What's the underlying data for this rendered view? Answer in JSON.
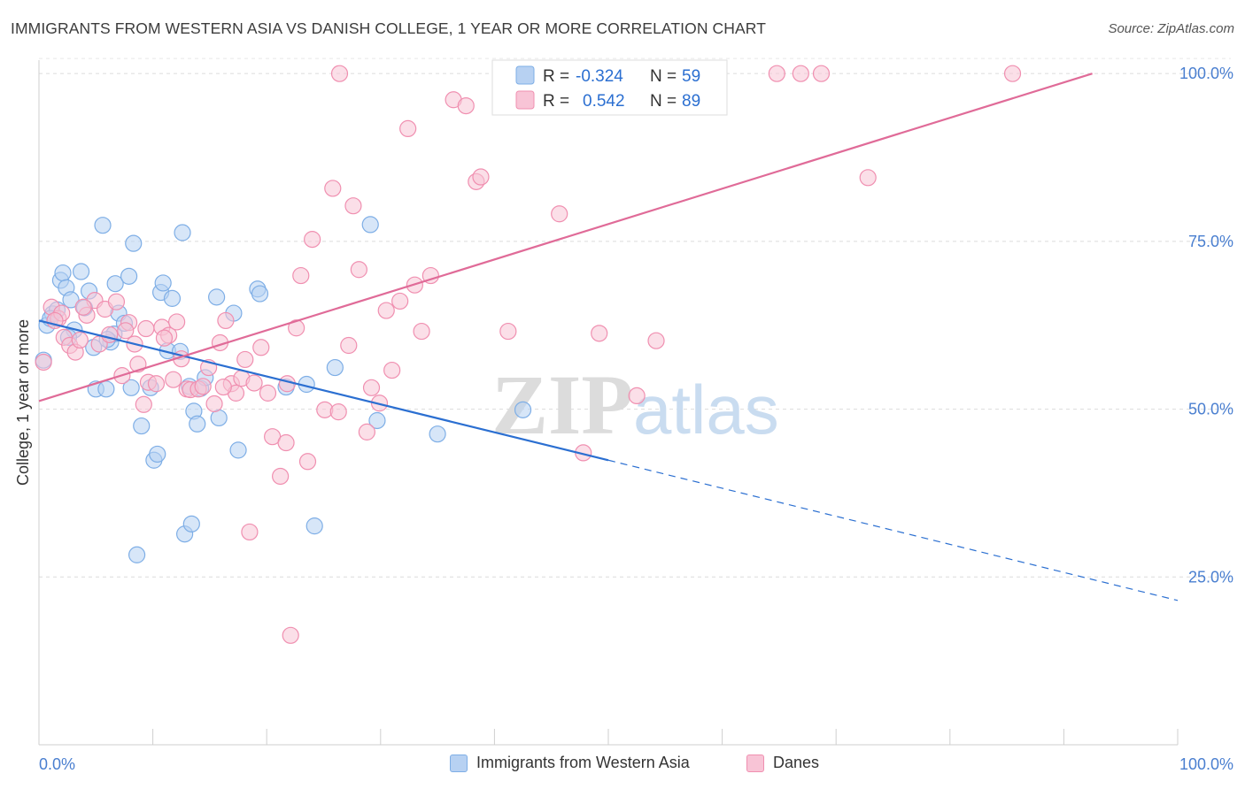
{
  "header": {
    "title": "IMMIGRANTS FROM WESTERN ASIA VS DANISH COLLEGE, 1 YEAR OR MORE CORRELATION CHART",
    "source": "Source: ZipAtlas.com"
  },
  "watermark": {
    "zip": "ZIP",
    "atlas": "atlas"
  },
  "legend_top": [
    {
      "r_label": "R =",
      "r_value": "-0.324",
      "n_label": "N =",
      "n_value": "59"
    },
    {
      "r_label": "R =",
      "r_value": "0.542",
      "n_label": "N =",
      "n_value": "89"
    }
  ],
  "legend_bottom": [
    {
      "label": "Immigrants from Western Asia"
    },
    {
      "label": "Danes"
    }
  ],
  "chart_data": {
    "type": "scatter",
    "title": "IMMIGRANTS FROM WESTERN ASIA VS DANISH COLLEGE, 1 YEAR OR MORE CORRELATION CHART",
    "xlabel": "",
    "ylabel": "College, 1 year or more",
    "xlim": [
      0,
      100
    ],
    "ylim": [
      0,
      102
    ],
    "x_tick_labels": [
      "0.0%",
      "100.0%"
    ],
    "y_ticks": [
      25,
      50,
      75,
      100
    ],
    "y_tick_labels": [
      "25.0%",
      "50.0%",
      "75.0%",
      "100.0%"
    ],
    "grid": true,
    "series": [
      {
        "name": "Immigrants from Western Asia",
        "color": "#7eaee6",
        "fill": "#b7d1f2",
        "trend_color": "#2b6fd1",
        "trend": {
          "x0": 0,
          "y0": 63.2,
          "x1": 50,
          "y1": 42.4,
          "dash_to_x": 100,
          "dash_to_y": 21.5
        },
        "points": [
          [
            0.7,
            62.5
          ],
          [
            1.2,
            64.2
          ],
          [
            1.6,
            64.8
          ],
          [
            1.9,
            69.2
          ],
          [
            2.1,
            70.3
          ],
          [
            2.4,
            68.1
          ],
          [
            2.8,
            66.3
          ],
          [
            3.1,
            61.8
          ],
          [
            3.7,
            70.5
          ],
          [
            4.0,
            65.1
          ],
          [
            4.4,
            67.6
          ],
          [
            4.8,
            59.2
          ],
          [
            5.0,
            53.0
          ],
          [
            5.6,
            77.4
          ],
          [
            5.9,
            53.0
          ],
          [
            6.3,
            60.0
          ],
          [
            6.6,
            61.2
          ],
          [
            6.7,
            68.7
          ],
          [
            7.0,
            64.3
          ],
          [
            7.5,
            62.8
          ],
          [
            7.9,
            69.8
          ],
          [
            8.1,
            53.2
          ],
          [
            8.3,
            74.7
          ],
          [
            8.6,
            28.3
          ],
          [
            9.0,
            47.5
          ],
          [
            9.8,
            53.2
          ],
          [
            10.1,
            42.4
          ],
          [
            10.4,
            43.3
          ],
          [
            10.7,
            67.4
          ],
          [
            10.9,
            68.8
          ],
          [
            11.3,
            58.7
          ],
          [
            11.7,
            66.5
          ],
          [
            12.4,
            58.6
          ],
          [
            12.6,
            76.3
          ],
          [
            12.8,
            31.4
          ],
          [
            13.2,
            53.4
          ],
          [
            13.4,
            32.9
          ],
          [
            13.6,
            49.7
          ],
          [
            13.9,
            47.8
          ],
          [
            14.2,
            53.1
          ],
          [
            14.6,
            54.7
          ],
          [
            15.8,
            48.7
          ],
          [
            15.6,
            66.7
          ],
          [
            17.1,
            64.3
          ],
          [
            17.5,
            43.9
          ],
          [
            19.2,
            67.9
          ],
          [
            19.4,
            67.2
          ],
          [
            21.7,
            53.3
          ],
          [
            23.5,
            53.7
          ],
          [
            24.2,
            32.6
          ],
          [
            26.0,
            56.2
          ],
          [
            29.1,
            77.5
          ],
          [
            29.7,
            48.3
          ],
          [
            35.0,
            46.3
          ],
          [
            42.5,
            49.9
          ],
          [
            0.4,
            57.3
          ],
          [
            1.0,
            63.5
          ],
          [
            2.6,
            60.7
          ],
          [
            6.0,
            60.4
          ]
        ]
      },
      {
        "name": "Danes",
        "color": "#f08fb0",
        "fill": "#f8c4d6",
        "trend_color": "#e06b98",
        "trend": {
          "x0": 0,
          "y0": 51.2,
          "x1": 92.5,
          "y1": 100.0
        },
        "points": [
          [
            0.4,
            57.0
          ],
          [
            1.1,
            65.2
          ],
          [
            1.7,
            63.5
          ],
          [
            2.2,
            60.7
          ],
          [
            2.7,
            59.5
          ],
          [
            3.2,
            58.5
          ],
          [
            3.6,
            60.3
          ],
          [
            4.2,
            64.0
          ],
          [
            4.9,
            66.2
          ],
          [
            5.3,
            59.7
          ],
          [
            5.8,
            64.9
          ],
          [
            6.2,
            61.1
          ],
          [
            6.8,
            66.0
          ],
          [
            7.3,
            55.0
          ],
          [
            7.9,
            62.9
          ],
          [
            8.4,
            59.7
          ],
          [
            8.7,
            56.7
          ],
          [
            9.2,
            50.7
          ],
          [
            9.6,
            54.0
          ],
          [
            10.3,
            53.8
          ],
          [
            10.8,
            62.2
          ],
          [
            11.4,
            61.0
          ],
          [
            11.8,
            54.4
          ],
          [
            12.1,
            63.0
          ],
          [
            12.5,
            57.5
          ],
          [
            13.0,
            53.0
          ],
          [
            13.3,
            52.9
          ],
          [
            14.0,
            53.0
          ],
          [
            14.4,
            53.4
          ],
          [
            14.9,
            56.2
          ],
          [
            15.4,
            50.8
          ],
          [
            15.9,
            59.9
          ],
          [
            16.4,
            63.2
          ],
          [
            16.9,
            53.8
          ],
          [
            17.3,
            52.4
          ],
          [
            17.8,
            54.6
          ],
          [
            18.1,
            57.4
          ],
          [
            18.9,
            53.9
          ],
          [
            19.5,
            59.2
          ],
          [
            20.1,
            52.4
          ],
          [
            20.5,
            45.9
          ],
          [
            21.2,
            40.0
          ],
          [
            21.7,
            45.0
          ],
          [
            22.1,
            16.3
          ],
          [
            22.6,
            62.1
          ],
          [
            23.0,
            69.9
          ],
          [
            23.6,
            42.2
          ],
          [
            24.0,
            75.3
          ],
          [
            25.1,
            49.9
          ],
          [
            25.8,
            82.9
          ],
          [
            26.3,
            49.6
          ],
          [
            27.2,
            59.5
          ],
          [
            27.6,
            80.3
          ],
          [
            28.1,
            70.8
          ],
          [
            28.8,
            46.6
          ],
          [
            29.2,
            53.2
          ],
          [
            29.9,
            50.9
          ],
          [
            30.5,
            64.7
          ],
          [
            31.0,
            55.8
          ],
          [
            31.7,
            66.1
          ],
          [
            32.4,
            91.8
          ],
          [
            33.0,
            68.5
          ],
          [
            33.6,
            61.6
          ],
          [
            34.4,
            69.9
          ],
          [
            36.4,
            96.1
          ],
          [
            37.5,
            95.2
          ],
          [
            38.4,
            83.9
          ],
          [
            38.8,
            84.6
          ],
          [
            41.2,
            61.6
          ],
          [
            45.7,
            79.1
          ],
          [
            47.8,
            43.5
          ],
          [
            49.2,
            61.3
          ],
          [
            52.5,
            52.0
          ],
          [
            54.2,
            60.2
          ],
          [
            64.8,
            100.0
          ],
          [
            66.9,
            100.0
          ],
          [
            68.7,
            100.0
          ],
          [
            85.5,
            100.0
          ],
          [
            72.8,
            84.5
          ],
          [
            26.4,
            100.0
          ],
          [
            21.8,
            53.8
          ],
          [
            16.2,
            53.3
          ],
          [
            11.0,
            60.6
          ],
          [
            9.4,
            62.0
          ],
          [
            7.6,
            61.7
          ],
          [
            3.9,
            65.2
          ],
          [
            2.0,
            64.3
          ],
          [
            1.4,
            63.2
          ],
          [
            18.5,
            31.7
          ]
        ]
      }
    ]
  }
}
